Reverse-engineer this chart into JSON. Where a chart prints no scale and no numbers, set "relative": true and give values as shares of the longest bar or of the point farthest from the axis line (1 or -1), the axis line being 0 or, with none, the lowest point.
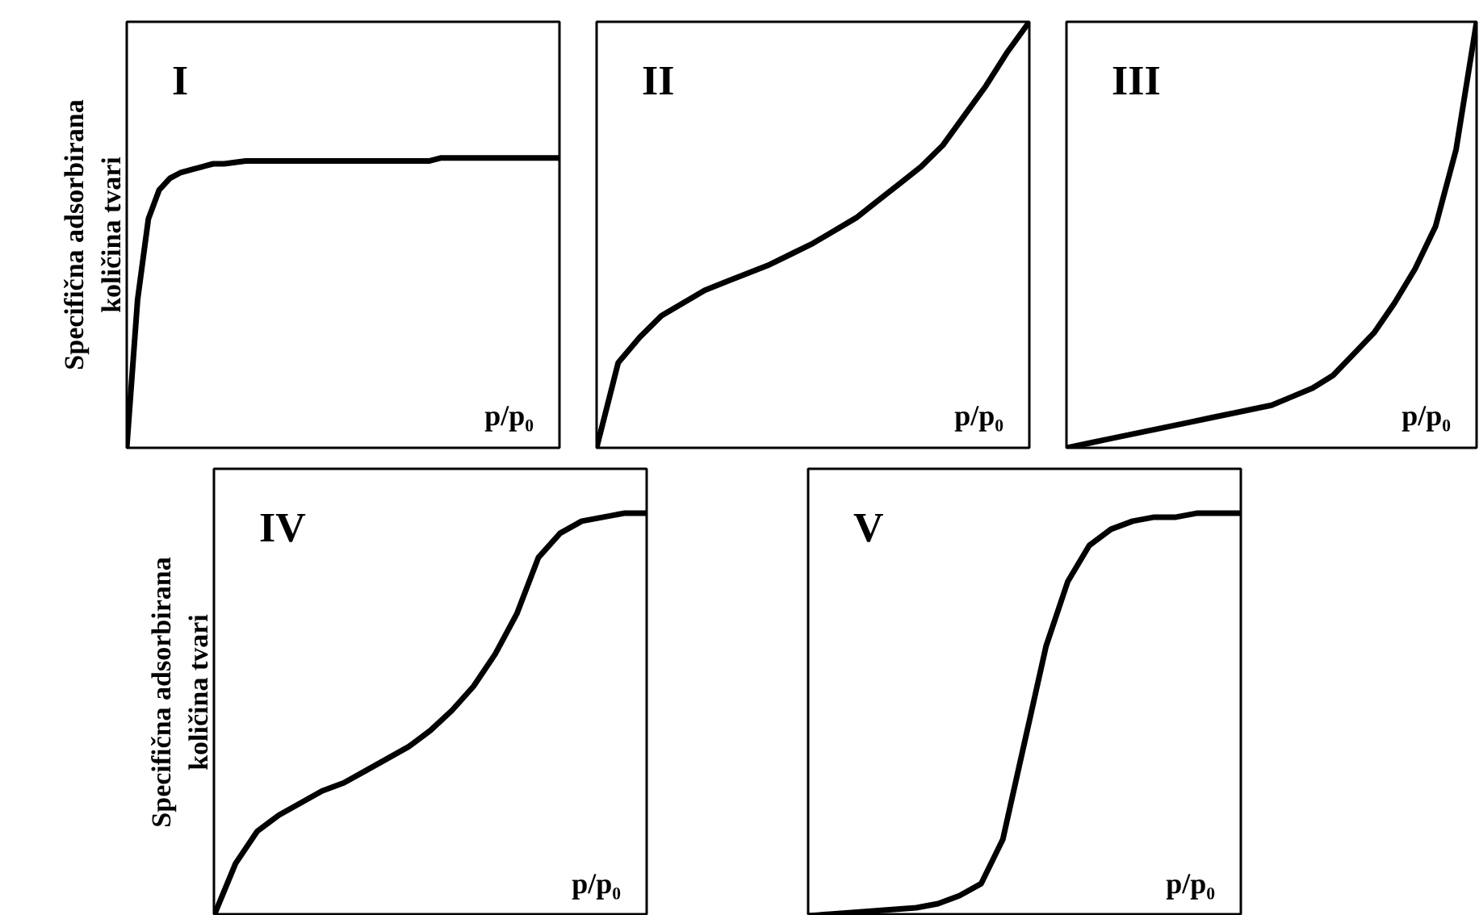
{
  "chart_data": [
    {
      "type": "line",
      "title": "I",
      "xlabel": "p/p₀",
      "ylabel": "Specifična adsorbirana\nkoličina tvari",
      "relative": true,
      "color": "#000000",
      "categories": [
        null,
        null,
        null,
        null,
        null,
        null,
        null,
        null,
        null,
        null,
        null,
        null,
        null,
        null,
        null,
        null,
        null,
        null,
        null,
        null,
        null,
        null,
        null,
        null,
        null,
        null,
        null,
        null,
        null,
        null,
        null,
        null,
        null,
        null,
        null,
        null,
        null,
        null,
        null,
        null,
        null
      ],
      "values": [
        0,
        0.51,
        0.79,
        0.89,
        0.93,
        0.95,
        0.96,
        0.97,
        0.98,
        0.98,
        0.985,
        0.99,
        0.99,
        0.99,
        0.99,
        0.99,
        0.99,
        0.99,
        0.99,
        0.99,
        0.99,
        0.99,
        0.99,
        0.99,
        0.99,
        0.99,
        0.99,
        0.99,
        0.99,
        1.0,
        1.0,
        1.0,
        1.0,
        1.0,
        1.0,
        1.0,
        1.0,
        1.0,
        1.0,
        1.0,
        1.0
      ]
    },
    {
      "type": "line",
      "title": "II",
      "xlabel": "p/p₀",
      "relative": true,
      "color": "#000000",
      "categories": [
        null,
        null,
        null,
        null,
        null,
        null,
        null,
        null,
        null,
        null,
        null,
        null,
        null,
        null,
        null,
        null,
        null,
        null,
        null,
        null,
        null
      ],
      "values": [
        0,
        0.2,
        0.26,
        0.31,
        0.34,
        0.37,
        0.39,
        0.41,
        0.43,
        0.455,
        0.48,
        0.51,
        0.54,
        0.58,
        0.62,
        0.66,
        0.71,
        0.78,
        0.85,
        0.93,
        1.0
      ]
    },
    {
      "type": "line",
      "title": "III",
      "xlabel": "p/p₀",
      "relative": true,
      "color": "#000000",
      "categories": [
        null,
        null,
        null,
        null,
        null,
        null,
        null,
        null,
        null,
        null,
        null,
        null,
        null,
        null,
        null,
        null,
        null,
        null,
        null,
        null,
        null
      ],
      "values": [
        0,
        0.01,
        0.02,
        0.03,
        0.04,
        0.05,
        0.06,
        0.07,
        0.08,
        0.09,
        0.1,
        0.12,
        0.14,
        0.17,
        0.22,
        0.27,
        0.34,
        0.42,
        0.52,
        0.7,
        1.0
      ]
    },
    {
      "type": "line",
      "title": "IV",
      "xlabel": "p/p₀",
      "ylabel": "Specifična adsorbirana\nkoličina tvari",
      "relative": true,
      "color": "#000000",
      "categories": [
        null,
        null,
        null,
        null,
        null,
        null,
        null,
        null,
        null,
        null,
        null,
        null,
        null,
        null,
        null,
        null,
        null,
        null,
        null,
        null,
        null
      ],
      "values": [
        0,
        0.13,
        0.21,
        0.25,
        0.28,
        0.31,
        0.33,
        0.36,
        0.39,
        0.42,
        0.46,
        0.51,
        0.57,
        0.65,
        0.75,
        0.89,
        0.95,
        0.98,
        0.99,
        1.0,
        1.0
      ]
    },
    {
      "type": "line",
      "title": "V",
      "xlabel": "p/p₀",
      "relative": true,
      "color": "#000000",
      "categories": [
        null,
        null,
        null,
        null,
        null,
        null,
        null,
        null,
        null,
        null,
        null,
        null,
        null,
        null,
        null,
        null,
        null,
        null,
        null,
        null,
        null
      ],
      "values": [
        0,
        0.004,
        0.008,
        0.012,
        0.016,
        0.02,
        0.03,
        0.05,
        0.08,
        0.19,
        0.43,
        0.67,
        0.83,
        0.92,
        0.96,
        0.98,
        0.99,
        0.99,
        1.0,
        1.0,
        1.0
      ]
    }
  ]
}
